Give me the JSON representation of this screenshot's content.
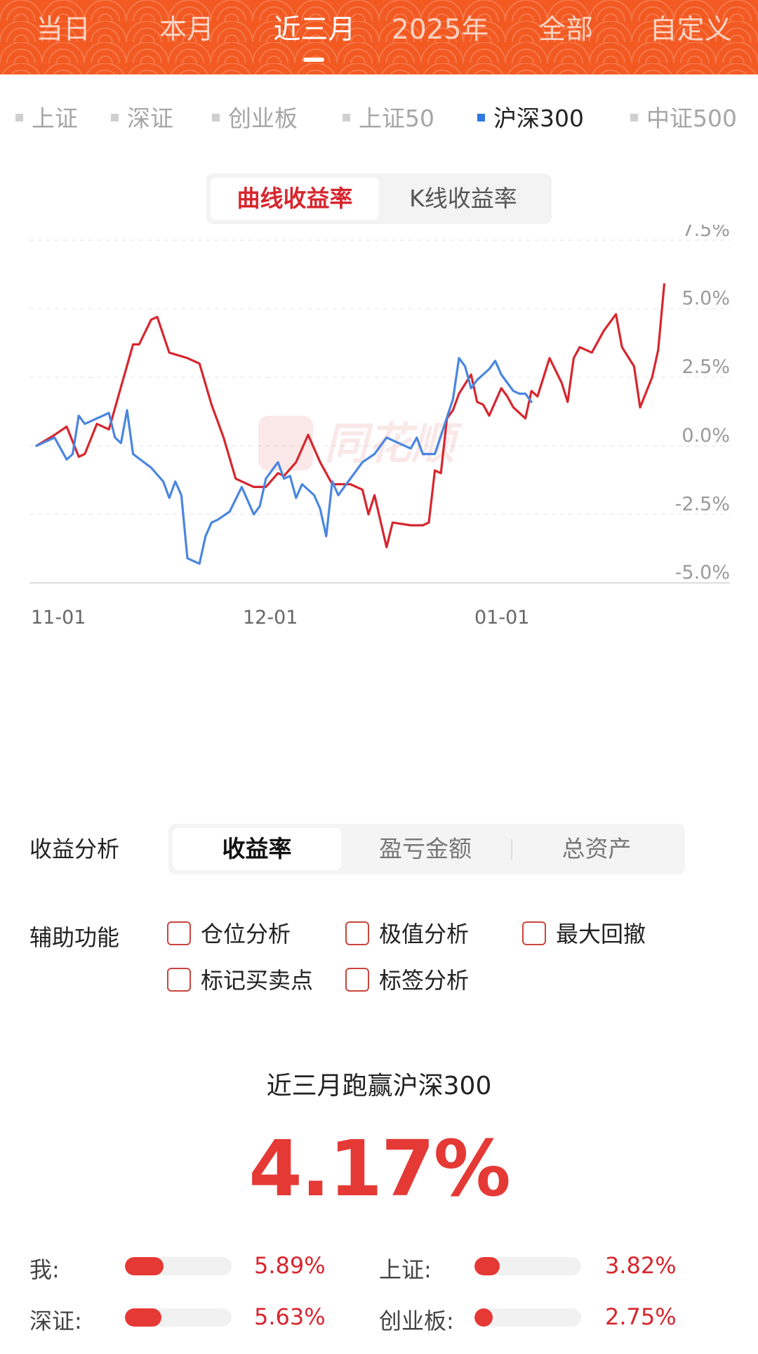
{
  "period_tabs": [
    {
      "label": "当日",
      "active": false
    },
    {
      "label": "本月",
      "active": false
    },
    {
      "label": "近三月",
      "active": true
    },
    {
      "label": "2025年",
      "active": false
    },
    {
      "label": "全部",
      "active": false
    },
    {
      "label": "自定义",
      "active": false
    }
  ],
  "index_tabs": [
    {
      "label": "上证",
      "active": false
    },
    {
      "label": "深证",
      "active": false
    },
    {
      "label": "创业板",
      "active": false
    },
    {
      "label": "上证50",
      "active": false
    },
    {
      "label": "沪深300",
      "active": true
    },
    {
      "label": "中证500",
      "active": false
    }
  ],
  "chart_mode": {
    "options": [
      "曲线收益率",
      "K线收益率"
    ],
    "active": "曲线收益率"
  },
  "chart_data": {
    "type": "line",
    "watermark": "同花顺",
    "x_ticks": [
      "11-01",
      "12-01",
      "01-01"
    ],
    "y_ticks": [
      "7.5%",
      "5.0%",
      "2.5%",
      "0.0%",
      "-2.5%",
      "-5.0%"
    ],
    "ylim": [
      -5.0,
      7.5
    ],
    "grid": true,
    "series": [
      {
        "color": "#d7262e",
        "points": [
          [
            0,
            0.0
          ],
          [
            3,
            0.4
          ],
          [
            5,
            0.7
          ],
          [
            7,
            -0.4
          ],
          [
            8,
            -0.3
          ],
          [
            10,
            0.8
          ],
          [
            12,
            0.6
          ],
          [
            16,
            3.7
          ],
          [
            17,
            3.7
          ],
          [
            19,
            4.6
          ],
          [
            20,
            4.7
          ],
          [
            22,
            3.4
          ],
          [
            25,
            3.2
          ],
          [
            27,
            3.0
          ],
          [
            29,
            1.5
          ],
          [
            31,
            0.3
          ],
          [
            33,
            -1.2
          ],
          [
            36,
            -1.5
          ],
          [
            38,
            -1.5
          ],
          [
            40,
            -1.0
          ],
          [
            41,
            -1.1
          ],
          [
            43,
            -0.6
          ],
          [
            45,
            0.4
          ],
          [
            47,
            -0.6
          ],
          [
            49,
            -1.4
          ],
          [
            52,
            -1.4
          ],
          [
            54,
            -1.6
          ],
          [
            55,
            -2.5
          ],
          [
            56,
            -1.8
          ],
          [
            58,
            -3.7
          ],
          [
            59,
            -2.8
          ],
          [
            62,
            -2.9
          ],
          [
            64,
            -2.9
          ],
          [
            65,
            -2.8
          ],
          [
            66,
            -0.9
          ],
          [
            67,
            -1.0
          ],
          [
            68,
            1.0
          ],
          [
            69,
            1.3
          ],
          [
            70,
            1.9
          ],
          [
            72,
            2.6
          ],
          [
            73,
            1.6
          ],
          [
            74,
            1.5
          ],
          [
            75,
            1.1
          ],
          [
            77,
            2.1
          ],
          [
            78,
            1.8
          ],
          [
            79,
            1.4
          ],
          [
            81,
            1.0
          ],
          [
            82,
            2.0
          ],
          [
            83,
            1.8
          ],
          [
            85,
            3.2
          ],
          [
            87,
            2.3
          ],
          [
            88,
            1.6
          ],
          [
            89,
            3.2
          ],
          [
            90,
            3.6
          ],
          [
            92,
            3.4
          ],
          [
            94,
            4.2
          ],
          [
            96,
            4.8
          ],
          [
            97,
            3.6
          ],
          [
            99,
            2.9
          ],
          [
            100,
            1.4
          ],
          [
            102,
            2.5
          ],
          [
            103,
            3.5
          ],
          [
            104,
            5.89
          ]
        ]
      },
      {
        "color": "#4a86e0",
        "points": [
          [
            0,
            0.0
          ],
          [
            3,
            0.3
          ],
          [
            5,
            -0.5
          ],
          [
            6,
            -0.3
          ],
          [
            7,
            1.1
          ],
          [
            8,
            0.8
          ],
          [
            10,
            1.0
          ],
          [
            12,
            1.2
          ],
          [
            13,
            0.3
          ],
          [
            14,
            0.1
          ],
          [
            15,
            1.3
          ],
          [
            16,
            -0.3
          ],
          [
            19,
            -0.8
          ],
          [
            21,
            -1.3
          ],
          [
            22,
            -1.9
          ],
          [
            23,
            -1.3
          ],
          [
            24,
            -1.8
          ],
          [
            25,
            -4.1
          ],
          [
            27,
            -4.3
          ],
          [
            28,
            -3.3
          ],
          [
            29,
            -2.8
          ],
          [
            30,
            -2.7
          ],
          [
            32,
            -2.4
          ],
          [
            34,
            -1.5
          ],
          [
            36,
            -2.5
          ],
          [
            37,
            -2.2
          ],
          [
            38,
            -1.2
          ],
          [
            40,
            -0.6
          ],
          [
            41,
            -1.2
          ],
          [
            42,
            -1.1
          ],
          [
            43,
            -1.9
          ],
          [
            44,
            -1.4
          ],
          [
            46,
            -1.8
          ],
          [
            47,
            -2.3
          ],
          [
            48,
            -3.3
          ],
          [
            49,
            -1.3
          ],
          [
            50,
            -1.8
          ],
          [
            52,
            -1.2
          ],
          [
            54,
            -0.6
          ],
          [
            56,
            -0.3
          ],
          [
            58,
            0.3
          ],
          [
            60,
            0.1
          ],
          [
            62,
            -0.1
          ],
          [
            63,
            0.3
          ],
          [
            64,
            -0.3
          ],
          [
            66,
            -0.3
          ],
          [
            69,
            1.7
          ],
          [
            70,
            3.2
          ],
          [
            71,
            2.9
          ],
          [
            72,
            2.1
          ],
          [
            73,
            2.4
          ],
          [
            75,
            2.8
          ],
          [
            76,
            3.1
          ],
          [
            77,
            2.6
          ],
          [
            78,
            2.3
          ],
          [
            79,
            2.0
          ],
          [
            80,
            1.9
          ],
          [
            81,
            1.9
          ],
          [
            82,
            1.6
          ]
        ]
      }
    ]
  },
  "analysis": {
    "label": "收益分析",
    "options": [
      "收益率",
      "盈亏金额",
      "总资产"
    ],
    "active": "收益率"
  },
  "aux": {
    "label": "辅助功能",
    "checkboxes": [
      {
        "label": "仓位分析",
        "checked": false
      },
      {
        "label": "极值分析",
        "checked": false
      },
      {
        "label": "最大回撤",
        "checked": false
      },
      {
        "label": "标记买卖点",
        "checked": false
      },
      {
        "label": "标签分析",
        "checked": false
      }
    ]
  },
  "summary": {
    "title": "近三月跑赢沪深300",
    "value": "4.17%"
  },
  "comparisons": [
    {
      "label": "我:",
      "value": "5.89%",
      "fill": 0.36
    },
    {
      "label": "上证:",
      "value": "3.82%",
      "fill": 0.24
    },
    {
      "label": "深证:",
      "value": "5.63%",
      "fill": 0.34
    },
    {
      "label": "创业板:",
      "value": "2.75%",
      "fill": 0.17
    }
  ],
  "colors": {
    "brand_orange": "#f25a22",
    "red": "#d7262e",
    "blue": "#4a86e0"
  }
}
